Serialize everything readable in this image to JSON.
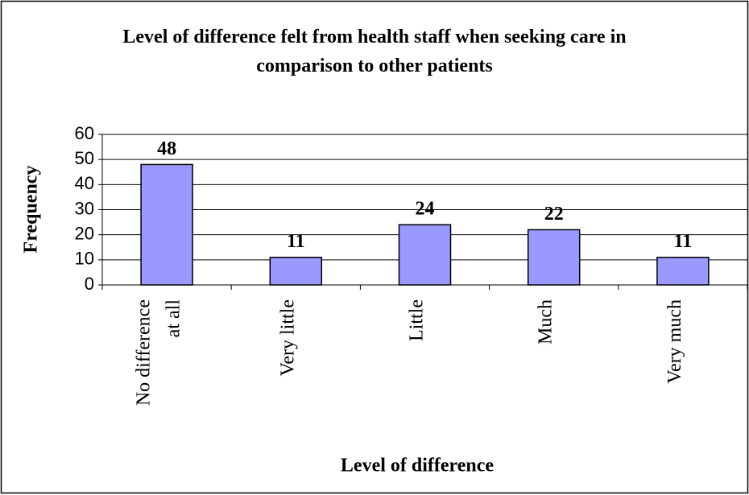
{
  "chart_data": {
    "type": "bar",
    "title": "Level of difference felt from health staff when seeking care in comparison to other patients",
    "x_label": "Level of difference",
    "y_label": "Frequency",
    "categories": [
      "No difference at all",
      "Very little",
      "Little",
      "Much",
      "Very much"
    ],
    "values": [
      48,
      11,
      24,
      22,
      11
    ],
    "color": "#9999ff",
    "ylim": [
      0,
      60
    ],
    "yticks": [
      0,
      10,
      20,
      30,
      40,
      50,
      60
    ],
    "grid": true
  }
}
